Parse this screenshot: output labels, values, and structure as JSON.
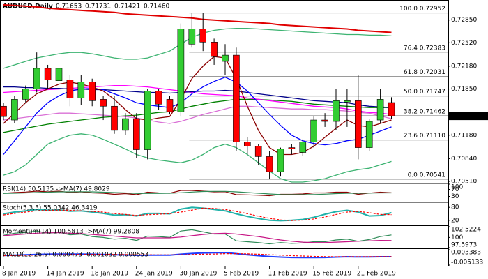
{
  "chart_data": [
    {
      "type": "candlestick",
      "title": "AUDUSD,Daily",
      "ohlc_text": [
        "0.71653",
        "0.71731",
        "0.71421",
        "0.71460"
      ],
      "categories": [
        "8 Jan 2019",
        null,
        null,
        null,
        "14 Jan 2019",
        null,
        null,
        null,
        "18 Jan 2019",
        null,
        null,
        null,
        "24 Jan 2019",
        null,
        null,
        null,
        "30 Jan 2019",
        null,
        null,
        null,
        "5 Feb 2019",
        null,
        null,
        null,
        "11 Feb 2019",
        null,
        null,
        null,
        "15 Feb 2019",
        null,
        null,
        null,
        "21 Feb 2019",
        null,
        null,
        null
      ],
      "open": [
        0.716,
        0.714,
        0.717,
        0.7185,
        0.7215,
        0.7197,
        0.7198,
        0.7172,
        0.7195,
        0.717,
        0.716,
        0.7125,
        0.7142,
        0.7097,
        0.7182,
        0.717,
        0.7152,
        0.725,
        0.7272,
        0.7253,
        0.7225,
        0.7234,
        0.7108,
        0.7102,
        0.7087,
        0.7065,
        0.71,
        0.7093,
        0.7108,
        0.714,
        0.7138,
        0.7166,
        0.7168,
        0.71,
        0.714,
        0.71653
      ],
      "high": [
        0.7165,
        0.7175,
        0.719,
        0.7238,
        0.722,
        0.7235,
        0.7205,
        0.7205,
        0.72,
        0.7175,
        0.7175,
        0.715,
        0.715,
        0.7185,
        0.7185,
        0.7175,
        0.728,
        0.7295,
        0.7295,
        0.7258,
        0.725,
        0.7245,
        0.7115,
        0.7105,
        0.7095,
        0.71,
        0.7105,
        0.7112,
        0.7145,
        0.715,
        0.7185,
        0.7185,
        0.7205,
        0.7142,
        0.7185,
        0.71731
      ],
      "low": [
        0.714,
        0.7135,
        0.7165,
        0.718,
        0.7185,
        0.719,
        0.716,
        0.7162,
        0.716,
        0.714,
        0.712,
        0.7118,
        0.7085,
        0.7083,
        0.7155,
        0.7148,
        0.7145,
        0.7245,
        0.724,
        0.722,
        0.7205,
        0.7095,
        0.709,
        0.7075,
        0.7054,
        0.7058,
        0.709,
        0.7088,
        0.71,
        0.713,
        0.7125,
        0.713,
        0.7083,
        0.7095,
        0.7135,
        0.71421
      ],
      "close": [
        0.7145,
        0.717,
        0.7185,
        0.7215,
        0.7198,
        0.7215,
        0.7172,
        0.7195,
        0.7168,
        0.716,
        0.7125,
        0.7142,
        0.7097,
        0.7182,
        0.7163,
        0.7152,
        0.7272,
        0.7272,
        0.7253,
        0.7232,
        0.7234,
        0.7108,
        0.7102,
        0.7087,
        0.7065,
        0.7098,
        0.7098,
        0.7108,
        0.714,
        0.7138,
        0.7168,
        0.7168,
        0.71,
        0.7138,
        0.717,
        0.7146
      ],
      "colors": {
        "up": "#32cd32",
        "down": "#ff0000"
      },
      "ylim": [
        0.7049,
        0.7312
      ],
      "yticks": [
        {
          "value": 0.7285,
          "label": "0.72850"
        },
        {
          "value": 0.7252,
          "label": "0.72520"
        },
        {
          "value": 0.7218,
          "label": "0.72180"
        },
        {
          "value": 0.7185,
          "label": "0.71850"
        },
        {
          "value": 0.7118,
          "label": "0.71180"
        },
        {
          "value": 0.7084,
          "label": "0.70840"
        },
        {
          "value": 0.7051,
          "label": "0.70510"
        }
      ],
      "last_price": {
        "value": 0.7146,
        "label": "0.71460"
      },
      "fib_levels": [
        {
          "value": 0.72952,
          "label": "100.0 0.72952"
        },
        {
          "value": 0.72383,
          "label": "76.4 0.72383"
        },
        {
          "value": 0.72031,
          "label": "61.8 0.72031"
        },
        {
          "value": 0.71747,
          "label": "50.0 0.71747"
        },
        {
          "value": 0.71462,
          "label": "38.2 0.71462"
        },
        {
          "value": 0.7111,
          "label": "23.6 0.71110"
        },
        {
          "value": 0.70541,
          "label": "0.0 0.70541"
        }
      ],
      "overlays": [
        {
          "color": "#3cb371",
          "values": [
            0.7215,
            0.722,
            0.7225,
            0.723,
            0.7233,
            0.7236,
            0.7238,
            0.7238,
            0.7236,
            0.7233,
            0.723,
            0.7228,
            0.7228,
            0.723,
            0.7235,
            0.724,
            0.725,
            0.726,
            0.7266,
            0.727,
            0.7272,
            0.7273,
            0.7273,
            0.7272,
            0.7271,
            0.727,
            0.7269,
            0.7268,
            0.7267,
            0.7266,
            0.7265,
            0.7264,
            0.7264,
            0.7263,
            0.7263,
            0.7262
          ]
        },
        {
          "color": "#3cb371",
          "values": [
            0.706,
            0.7065,
            0.7075,
            0.709,
            0.7105,
            0.7112,
            0.7118,
            0.712,
            0.7118,
            0.7112,
            0.7105,
            0.7098,
            0.709,
            0.7085,
            0.7082,
            0.708,
            0.7078,
            0.7082,
            0.709,
            0.71,
            0.7105,
            0.71,
            0.709,
            0.7078,
            0.7066,
            0.7055,
            0.705,
            0.705,
            0.7052,
            0.7055,
            0.706,
            0.7065,
            0.7068,
            0.707,
            0.7075,
            0.708
          ]
        },
        {
          "color": "#008000",
          "values": [
            0.7122,
            0.7125,
            0.7128,
            0.7131,
            0.7134,
            0.7136,
            0.7138,
            0.714,
            0.7142,
            0.7144,
            0.7145,
            0.7146,
            0.7147,
            0.7149,
            0.7151,
            0.7152,
            0.7156,
            0.716,
            0.7163,
            0.7166,
            0.7168,
            0.717,
            0.717,
            0.717,
            0.7169,
            0.7168,
            0.7167,
            0.7165,
            0.7163,
            0.7162,
            0.7161,
            0.716,
            0.7159,
            0.7158,
            0.7158,
            0.7158
          ]
        },
        {
          "color": "#da70d6",
          "values": [
            0.714,
            0.7142,
            0.7144,
            0.7146,
            0.7148,
            0.715,
            0.715,
            0.7149,
            0.7148,
            0.7147,
            0.7146,
            0.7145,
            0.7143,
            0.714,
            0.7137,
            0.7135,
            0.7138,
            0.7143,
            0.7148,
            0.7152,
            0.7156,
            0.716,
            0.716,
            0.7159,
            0.7158,
            0.7157,
            0.7156,
            0.7156,
            0.7155,
            0.7155,
            0.7154,
            0.7153,
            0.7151,
            0.715,
            0.7146,
            0.7142
          ]
        },
        {
          "color": "#ff00ff",
          "values": [
            0.718,
            0.7181,
            0.7182,
            0.7183,
            0.7184,
            0.7185,
            0.7186,
            0.7187,
            0.7188,
            0.7189,
            0.719,
            0.719,
            0.7189,
            0.7188,
            0.7186,
            0.7184,
            0.7182,
            0.718,
            0.7178,
            0.7177,
            0.7176,
            0.7175,
            0.7172,
            0.717,
            0.7168,
            0.7166,
            0.7164,
            0.7162,
            0.716,
            0.7159,
            0.7158,
            0.7156,
            0.7153,
            0.7151,
            0.715,
            0.7148
          ]
        },
        {
          "color": "#00008b",
          "values": [
            0.7188,
            0.7188,
            0.7187,
            0.7187,
            0.7186,
            0.7186,
            0.7185,
            0.7185,
            0.7184,
            0.7184,
            0.7183,
            0.7182,
            0.7181,
            0.718,
            0.718,
            0.7179,
            0.718,
            0.7181,
            0.7182,
            0.7182,
            0.7183,
            0.7182,
            0.718,
            0.7178,
            0.7176,
            0.7174,
            0.7172,
            0.717,
            0.7168,
            0.7167,
            0.7166,
            0.7165,
            0.7162,
            0.716,
            0.7159,
            0.7158
          ]
        },
        {
          "color": "#0000ff",
          "values": [
            0.709,
            0.711,
            0.713,
            0.715,
            0.7165,
            0.7175,
            0.7182,
            0.7185,
            0.7186,
            0.7184,
            0.7178,
            0.7172,
            0.7165,
            0.7162,
            0.716,
            0.7158,
            0.7165,
            0.7178,
            0.7188,
            0.7196,
            0.7202,
            0.7195,
            0.7182,
            0.7165,
            0.7148,
            0.7132,
            0.7118,
            0.711,
            0.7106,
            0.7104,
            0.7106,
            0.711,
            0.7112,
            0.7118,
            0.7124,
            0.713
          ]
        },
        {
          "color": "#8b0000",
          "values": [
            0.7135,
            0.715,
            0.7165,
            0.7178,
            0.7185,
            0.7192,
            0.7195,
            0.7192,
            0.7188,
            0.7182,
            0.717,
            0.7155,
            0.7142,
            0.714,
            0.7143,
            0.7145,
            0.717,
            0.72,
            0.7218,
            0.7232,
            0.723,
            0.72,
            0.716,
            0.7125,
            0.71,
            0.709,
            0.709,
            0.7093,
            0.7102,
            0.7115,
            0.7128,
            0.714,
            0.7132,
            0.713,
            0.7135,
            0.714
          ]
        },
        {
          "color": "#e00000",
          "width": 2,
          "values": [
            0.7307,
            0.7306,
            0.7305,
            0.7304,
            0.7302,
            0.7301,
            0.73,
            0.7299,
            0.7298,
            0.7297,
            0.7296,
            0.7294,
            0.7293,
            0.7292,
            0.7291,
            0.729,
            0.7289,
            0.7288,
            0.7286,
            0.7285,
            0.7284,
            0.7283,
            0.7282,
            0.7281,
            0.728,
            0.7278,
            0.7277,
            0.7276,
            0.7275,
            0.7274,
            0.7273,
            0.7272,
            0.727,
            0.7269,
            0.7268,
            0.7267
          ]
        }
      ]
    },
    {
      "type": "line",
      "title": "RSI(14) 50.5135 ->MA(7) 49.8029",
      "ylim": [
        0,
        100
      ],
      "yticks": [
        100,
        70,
        30
      ],
      "lines": [
        {
          "color": "#8b0000",
          "values": [
            48,
            52,
            55,
            60,
            56,
            60,
            52,
            56,
            50,
            48,
            42,
            46,
            40,
            54,
            50,
            48,
            64,
            64,
            60,
            56,
            57,
            40,
            39,
            37,
            34,
            42,
            42,
            44,
            50,
            50,
            54,
            54,
            42,
            49,
            54,
            50.5135
          ]
        },
        {
          "color": "#2e8b57",
          "values": [
            47,
            48,
            50,
            52,
            54,
            56,
            56,
            57,
            56,
            54,
            52,
            50,
            47,
            47,
            47,
            48,
            51,
            55,
            58,
            59,
            59,
            56,
            52,
            48,
            44,
            41,
            40,
            40,
            41,
            43,
            46,
            48,
            48,
            49,
            50,
            49.8029
          ]
        }
      ]
    },
    {
      "type": "line",
      "title": "Stoch(5,3,3) 55.0342 46.3419",
      "ylim": [
        0,
        100
      ],
      "yticks": [
        80,
        20
      ],
      "lines": [
        {
          "color": "#20b2aa",
          "width": 2,
          "values": [
            50,
            58,
            64,
            70,
            66,
            68,
            62,
            64,
            58,
            52,
            44,
            46,
            40,
            52,
            52,
            50,
            72,
            80,
            76,
            70,
            64,
            50,
            38,
            28,
            20,
            18,
            20,
            24,
            34,
            48,
            60,
            66,
            58,
            40,
            42,
            55.0342
          ]
        },
        {
          "color": "#ff0000",
          "style": "dashed",
          "values": [
            45,
            52,
            58,
            64,
            66,
            67,
            66,
            64,
            61,
            58,
            51,
            47,
            43,
            46,
            48,
            51,
            58,
            67,
            76,
            75,
            70,
            61,
            51,
            39,
            29,
            22,
            19,
            21,
            26,
            35,
            47,
            58,
            61,
            55,
            47,
            46.3419
          ]
        }
      ]
    },
    {
      "type": "line",
      "title": "Momentum(14) 100.5813 ->MA(7) 99.2808",
      "ylim": [
        97.5973,
        102.5224
      ],
      "yticks": [
        102.5224,
        100,
        97.5973
      ],
      "lines": [
        {
          "color": "#2e8b57",
          "values": [
            100.5,
            101,
            101.2,
            101.5,
            101,
            101.2,
            100.6,
            100.8,
            100.2,
            100,
            99.6,
            99.8,
            99.3,
            100.3,
            100.2,
            100,
            101.5,
            101.8,
            101.3,
            100.8,
            100.8,
            99.2,
            99,
            98.8,
            98.5,
            98.8,
            98.6,
            98.7,
            99,
            99,
            99.4,
            99.6,
            99.1,
            99.5,
            100.2,
            100.5813
          ]
        },
        {
          "color": "#c71585",
          "values": [
            100.4,
            100.6,
            100.8,
            101,
            101.1,
            101.1,
            101,
            100.9,
            100.7,
            100.5,
            100.3,
            100.1,
            99.9,
            99.9,
            99.9,
            99.9,
            100.1,
            100.4,
            100.7,
            100.9,
            101,
            100.8,
            100.5,
            100.2,
            99.8,
            99.4,
            99.1,
            98.9,
            98.8,
            98.8,
            98.9,
            99,
            99.1,
            99.2,
            99.3,
            99.2808
          ]
        }
      ]
    },
    {
      "type": "line",
      "title": "MACD(12,26,9) 0.000473 -0.001032 0.000553",
      "ylim": [
        -0.005133,
        0.003383
      ],
      "yticks": [
        0.003383,
        -0.005133
      ],
      "lines": [
        {
          "color": "#1e3cff",
          "width": 2,
          "values": [
            0.0002,
            0.0004,
            0.0006,
            0.0008,
            0.0009,
            0.001,
            0.001,
            0.001,
            0.0009,
            0.0008,
            0.0006,
            0.0005,
            0.0003,
            0.0004,
            0.0004,
            0.0004,
            0.0009,
            0.0013,
            0.0016,
            0.0017,
            0.0018,
            0.0012,
            0.0006,
            0.0001,
            -0.0004,
            -0.0007,
            -0.0009,
            -0.001,
            -0.001,
            -0.0009,
            -0.0007,
            -0.0005,
            -0.0006,
            -0.0006,
            -0.0005,
            -0.0005
          ]
        },
        {
          "color": "#ff0000",
          "style": "dashed",
          "values": [
            0.0001,
            0.0002,
            0.0003,
            0.0004,
            0.0005,
            0.0006,
            0.0007,
            0.0008,
            0.0008,
            0.0008,
            0.0008,
            0.0007,
            0.0006,
            0.0006,
            0.0005,
            0.0005,
            0.0006,
            0.0007,
            0.0009,
            0.001,
            0.0012,
            0.0012,
            0.0011,
            0.0009,
            0.0006,
            0.0004,
            0.0001,
            -0.0001,
            -0.0003,
            -0.0004,
            -0.0005,
            -0.0005,
            -0.0005,
            -0.0005,
            -0.0005,
            -0.0005
          ]
        }
      ]
    }
  ]
}
